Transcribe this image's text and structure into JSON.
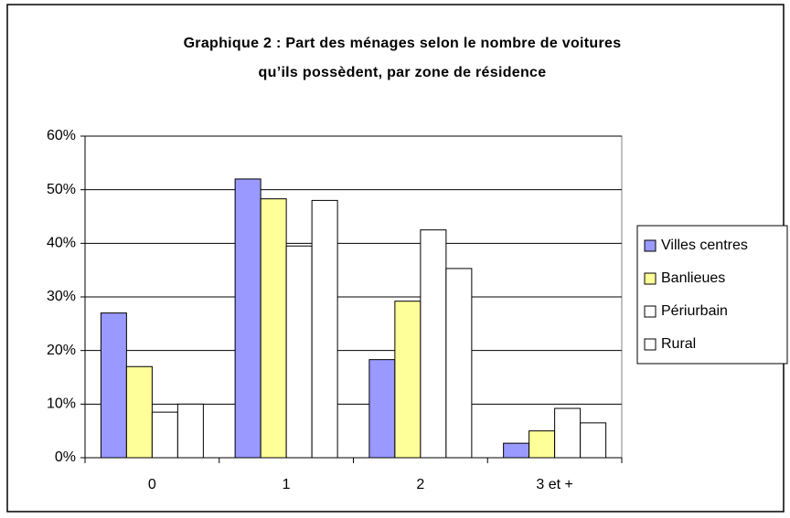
{
  "chart_data": {
    "type": "bar",
    "title": [
      "Graphique 2 : Part des ménages selon le nombre de voitures",
      "qu’ils possèdent, par zone de résidence"
    ],
    "categories": [
      "0",
      "1",
      "2",
      "3 et +"
    ],
    "series": [
      {
        "name": "Villes centres",
        "color": "#9999ff",
        "values": [
          27,
          52,
          18.3,
          2.7
        ]
      },
      {
        "name": "Banlieues",
        "color": "#ffff99",
        "values": [
          17,
          48.3,
          29.2,
          5
        ]
      },
      {
        "name": "Périurbain",
        "color": "#ffffff",
        "values": [
          8.5,
          39.5,
          42.5,
          9.2
        ]
      },
      {
        "name": "Rural",
        "color": "#ffffff",
        "values": [
          10,
          48,
          35.3,
          6.5
        ]
      }
    ],
    "ylim": [
      0,
      60
    ],
    "yticks": [
      {
        "value": 0,
        "label": "0%"
      },
      {
        "value": 10,
        "label": "10%"
      },
      {
        "value": 20,
        "label": "20%"
      },
      {
        "value": 30,
        "label": "30%"
      },
      {
        "value": 40,
        "label": "40%"
      },
      {
        "value": 50,
        "label": "50%"
      },
      {
        "value": 60,
        "label": "60%"
      }
    ],
    "grid": true,
    "legend": "right"
  }
}
